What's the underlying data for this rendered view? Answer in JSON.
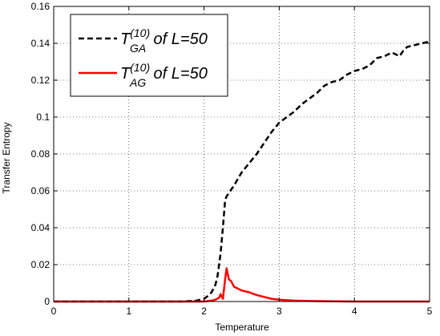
{
  "chart_data": {
    "type": "line",
    "xlabel": "Temperature",
    "ylabel": "Transfer Entropy",
    "xlim": [
      0,
      5
    ],
    "ylim": [
      0,
      0.16
    ],
    "xticks": [
      0,
      1,
      2,
      3,
      4,
      5
    ],
    "yticks": [
      0,
      0.02,
      0.04,
      0.06,
      0.08,
      0.1,
      0.12,
      0.14,
      0.16
    ],
    "xtick_labels": [
      "0",
      "1",
      "2",
      "3",
      "4",
      "5"
    ],
    "ytick_labels": [
      "0",
      "0.02",
      "0.04",
      "0.06",
      "0.08",
      "0.1",
      "0.12",
      "0.14",
      "0.16"
    ],
    "grid": true,
    "legend_position": "top-left",
    "series": [
      {
        "name": "T_GA^(10) of L=50",
        "legend_main": "T",
        "legend_sup": "(10)",
        "legend_sub": "GA",
        "legend_rest": " of L=50",
        "color": "#000000",
        "style": "dashed",
        "x": [
          0,
          1.0,
          1.7,
          1.9,
          2.0,
          2.05,
          2.1,
          2.15,
          2.18,
          2.2,
          2.22,
          2.25,
          2.28,
          2.3,
          2.35,
          2.4,
          2.5,
          2.6,
          2.7,
          2.8,
          2.9,
          3.0,
          3.1,
          3.2,
          3.3,
          3.4,
          3.5,
          3.6,
          3.7,
          3.8,
          3.9,
          4.0,
          4.1,
          4.2,
          4.3,
          4.4,
          4.5,
          4.6,
          4.65,
          4.7,
          4.8,
          4.9,
          5.0
        ],
        "y": [
          0,
          0,
          0,
          0.0005,
          0.0015,
          0.003,
          0.005,
          0.009,
          0.014,
          0.02,
          0.026,
          0.04,
          0.055,
          0.057,
          0.06,
          0.063,
          0.07,
          0.075,
          0.08,
          0.086,
          0.092,
          0.097,
          0.1,
          0.103,
          0.107,
          0.11,
          0.113,
          0.117,
          0.119,
          0.12,
          0.123,
          0.125,
          0.126,
          0.128,
          0.132,
          0.133,
          0.135,
          0.133,
          0.136,
          0.138,
          0.139,
          0.14,
          0.141
        ]
      },
      {
        "name": "T_AG^(10) of L=50",
        "legend_main": "T",
        "legend_sup": "(10)",
        "legend_sub": "AG",
        "legend_rest": " of L=50",
        "color": "#ff0000",
        "style": "solid",
        "x": [
          0,
          2.0,
          2.1,
          2.15,
          2.2,
          2.22,
          2.25,
          2.28,
          2.3,
          2.33,
          2.36,
          2.4,
          2.5,
          2.6,
          2.7,
          2.8,
          2.9,
          3.0,
          3.2,
          3.5,
          4.0,
          5.0
        ],
        "y": [
          0,
          0,
          0.0005,
          0.001,
          0.002,
          0.004,
          0.0015,
          0.012,
          0.018,
          0.012,
          0.011,
          0.008,
          0.006,
          0.005,
          0.0035,
          0.0025,
          0.0015,
          0.001,
          0.0005,
          0.0002,
          0,
          0
        ]
      }
    ]
  }
}
